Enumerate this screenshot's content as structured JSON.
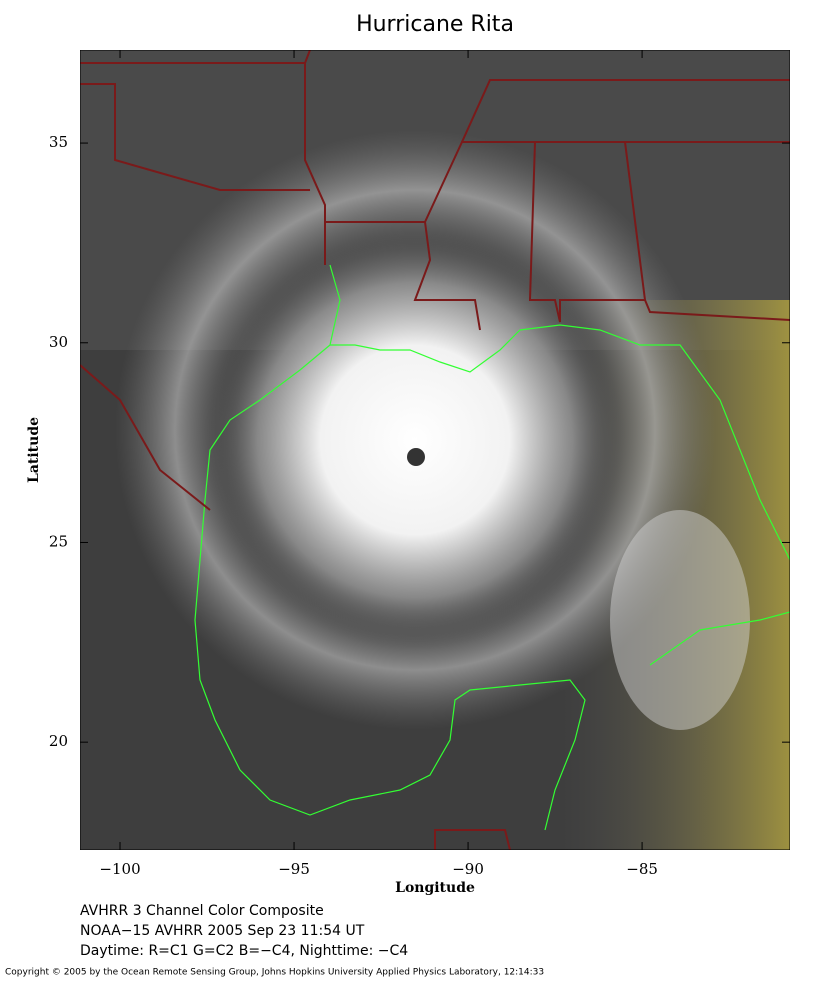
{
  "chart_data": {
    "type": "map",
    "title": "Hurricane Rita",
    "xlabel": "Longitude",
    "ylabel": "Latitude",
    "xlim": [
      -101.15,
      -80.75
    ],
    "ylim": [
      17.3,
      37.33
    ],
    "xticks": [
      {
        "value": -100,
        "label": "−100"
      },
      {
        "value": -95,
        "label": "−95"
      },
      {
        "value": -90,
        "label": "−90"
      },
      {
        "value": -85,
        "label": "−85"
      }
    ],
    "yticks": [
      20,
      25,
      30,
      35
    ],
    "captions": [
      "AVHRR 3 Channel Color Composite",
      "NOAA−15 AVHRR 2005 Sep 23 11:54 UT",
      "Daytime: R=C1 G=C2 B=−C4, Nighttime: −C4"
    ],
    "copyright": "Copyright © 2005 by the Ocean Remote Sensing Group, Johns Hopkins University Applied Physics Laboratory, 12:14:33"
  }
}
